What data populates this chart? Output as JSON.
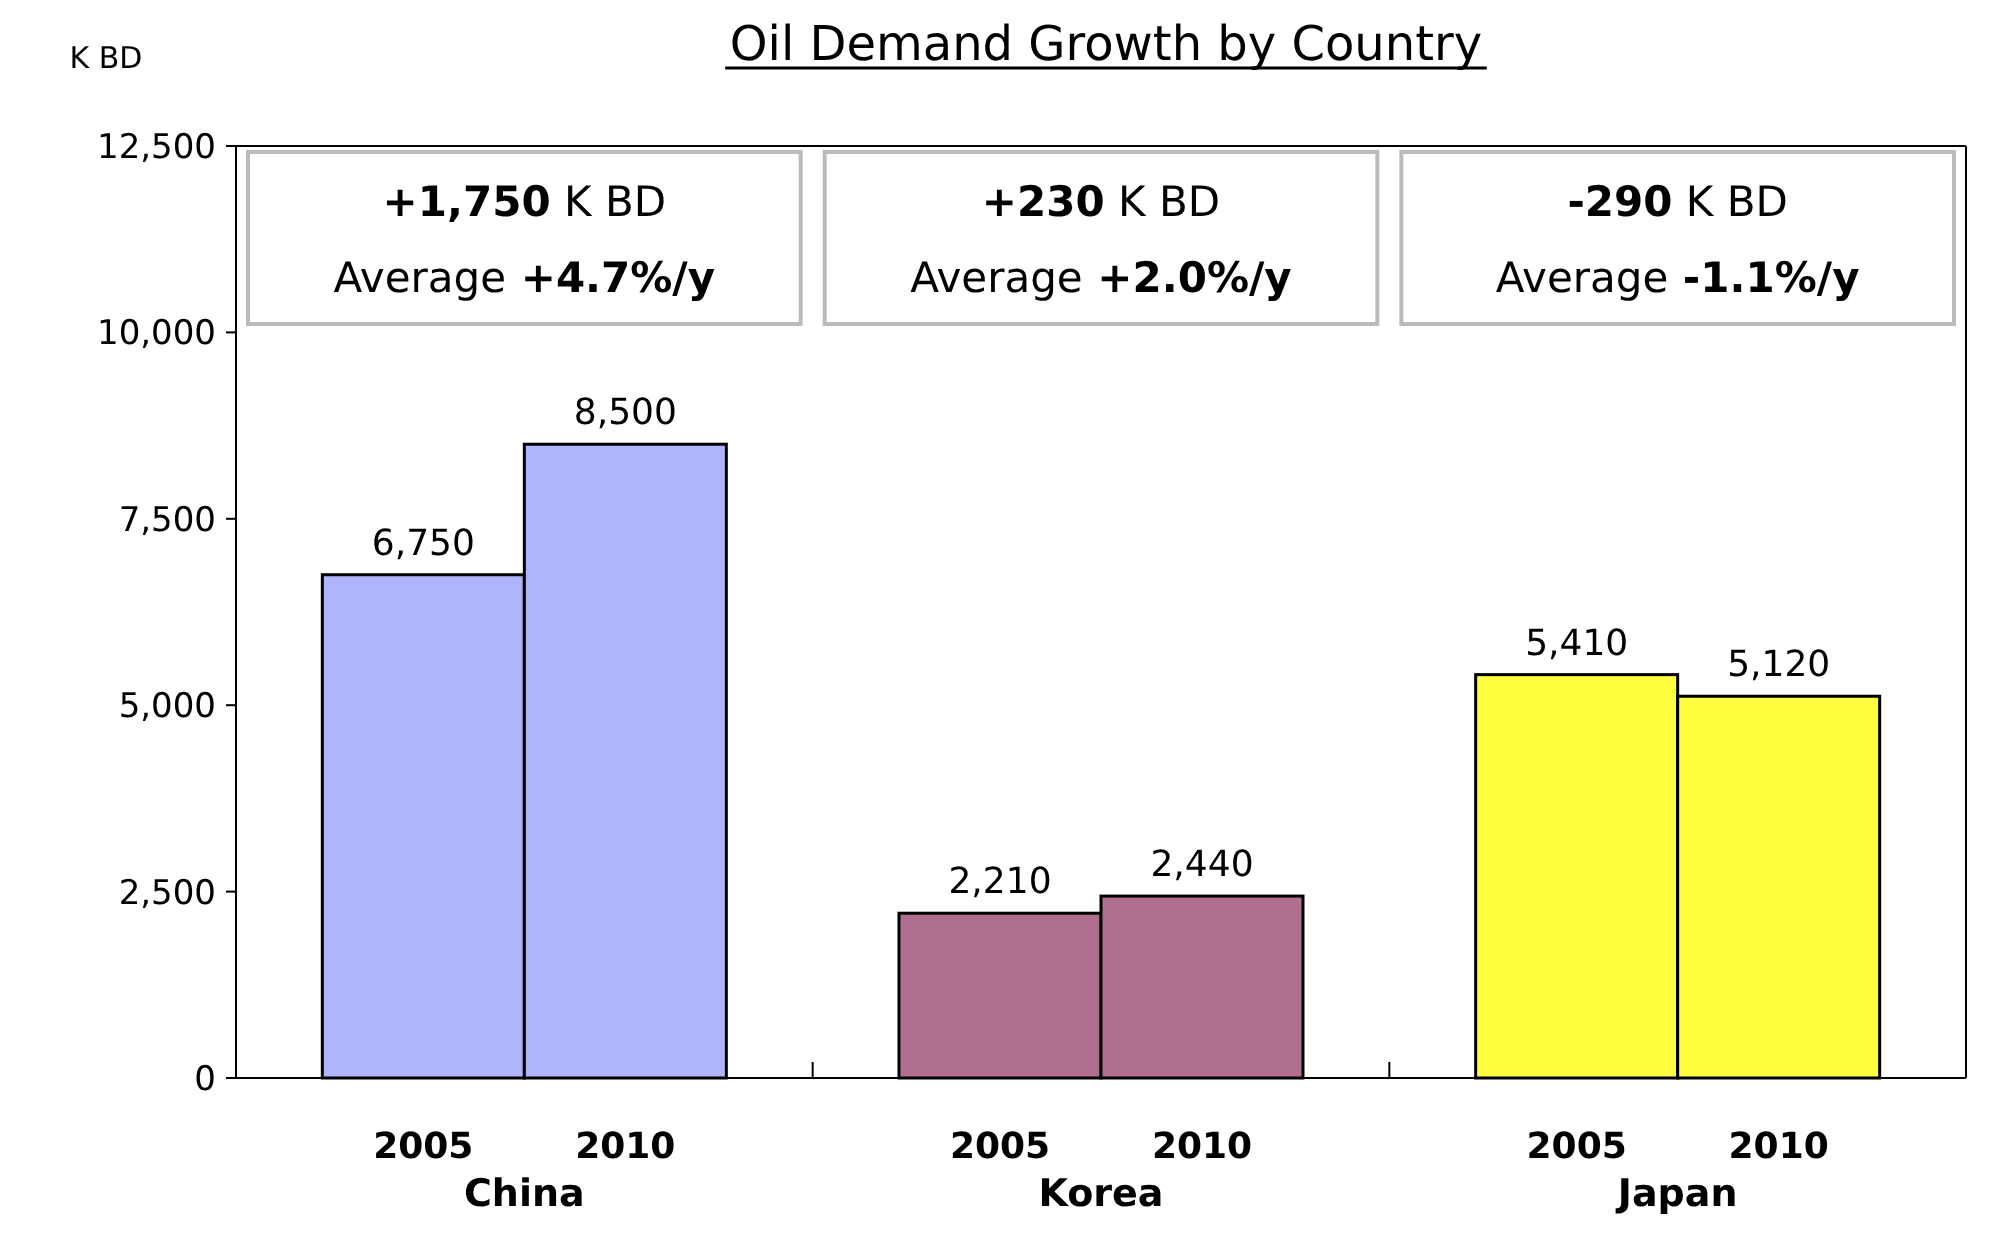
{
  "chart_data": {
    "type": "bar",
    "title": "Oil Demand Growth by Country",
    "ylabel": "K BD",
    "categories": [
      "2005",
      "2010",
      "2005",
      "2010",
      "2005",
      "2010"
    ],
    "values": [
      6750,
      8500,
      2210,
      2440,
      5410,
      5120
    ],
    "colors": [
      "#b0b4fa",
      "#b0b4fa",
      "#b06f8f",
      "#b06f8f",
      "#ffff40",
      "#ffff40"
    ],
    "ylim": [
      0,
      12500
    ],
    "yticks": [
      {
        "value": 0,
        "label": "0"
      },
      {
        "value": 2500,
        "label": "2,500"
      },
      {
        "value": 5000,
        "label": "5,000"
      },
      {
        "value": 7500,
        "label": "7,500"
      },
      {
        "value": 10000,
        "label": "10,000"
      },
      {
        "value": 12500,
        "label": "12,500"
      }
    ],
    "value_labels": [
      "6,750",
      "8,500",
      "2,210",
      "2,440",
      "5,410",
      "5,120"
    ],
    "annotations": [
      "+1,750 K BD\nAverage +4.7%/y",
      "+230 K BD\nAverage +2.0%/y",
      "-290 K BD\nAverage -1.1%/y",
      "China",
      "Korea",
      "Japan"
    ],
    "grid": false
  }
}
